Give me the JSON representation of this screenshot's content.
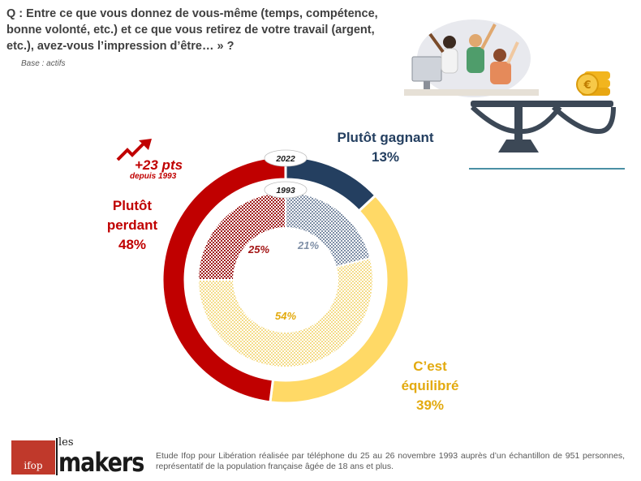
{
  "question": "Q : Entre ce que vous donnez de vous-même (temps, compétence, bonne volonté, etc.) et ce que vous retirez de votre travail (argent, etc.), avez-vous l’impression d’être… » ?",
  "base": "Base : actifs",
  "footer": "Etude Ifop pour Libération réalisée par téléphone du 25 au 26 novembre 1993 auprès d’un échantillon de 951 personnes, représentatif de la population française âgée de 18 ans et plus.",
  "logos": {
    "ifop": "ifop",
    "les": "les",
    "makers": "makers"
  },
  "evolution": {
    "value": "+23 pts",
    "since": "depuis 1993",
    "icon": "trend-up-arrow-icon"
  },
  "colors": {
    "perdant": "#c00000",
    "equilibre": "#ffd966",
    "gagnant": "#243f60",
    "inner_gagnant": "#8496b0",
    "inner_equilibre": "#e3aa0f"
  },
  "chart_data": {
    "type": "pie",
    "subtype": "double-donut",
    "rings": [
      {
        "year": "2022",
        "position": "outer",
        "slices": [
          {
            "name": "Plutôt gagnant",
            "value": 13,
            "label": "13%"
          },
          {
            "name": "C’est équilibré",
            "value": 39,
            "label": "39%"
          },
          {
            "name": "Plutôt perdant",
            "value": 48,
            "label": "48%"
          }
        ]
      },
      {
        "year": "1993",
        "position": "inner",
        "slices": [
          {
            "name": "Plutôt gagnant",
            "value": 21,
            "label": "21%"
          },
          {
            "name": "C’est équilibré",
            "value": 54,
            "label": "54%"
          },
          {
            "name": "Plutôt perdant",
            "value": 25,
            "label": "25%"
          }
        ]
      }
    ],
    "category_labels": {
      "gagnant": [
        "Plutôt gagnant",
        "13%"
      ],
      "perdant": [
        "Plutôt",
        "perdant",
        "48%"
      ],
      "equilibre": [
        "C’est",
        "équilibré",
        "39%"
      ]
    }
  }
}
